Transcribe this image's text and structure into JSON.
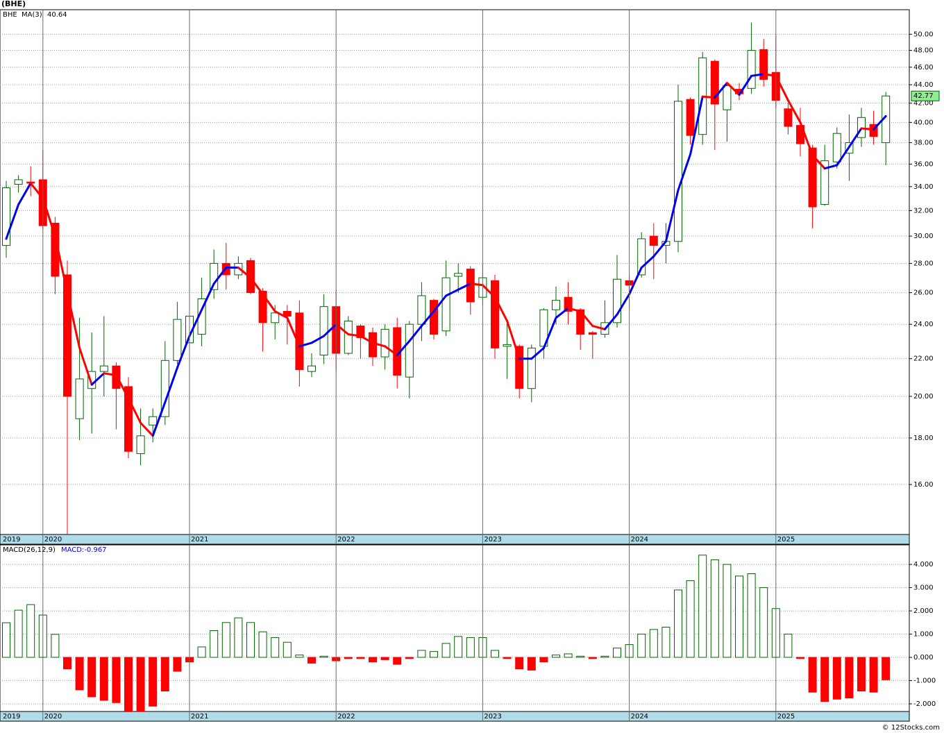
{
  "chart_data": [
    {
      "type": "candlestick",
      "title": "(BHE)",
      "symbol": "BHE",
      "log_scale": true,
      "grid": true,
      "up_color": "#006400",
      "down_color": "#ff0000",
      "categories": [
        "2019",
        null,
        null,
        "2020",
        null,
        null,
        null,
        null,
        null,
        null,
        null,
        null,
        null,
        null,
        null,
        "2021",
        null,
        null,
        null,
        null,
        null,
        null,
        null,
        null,
        null,
        null,
        null,
        "2022",
        null,
        null,
        null,
        null,
        null,
        null,
        null,
        null,
        null,
        null,
        null,
        "2023",
        null,
        null,
        null,
        null,
        null,
        null,
        null,
        null,
        null,
        null,
        null,
        "2024",
        null,
        null,
        null,
        null,
        null,
        null,
        null,
        null,
        null,
        null,
        null,
        "2025",
        null,
        null,
        null,
        null,
        null,
        null,
        null,
        null,
        null
      ],
      "open": [
        29.3,
        34.2,
        34.4,
        34.6,
        31.0,
        27.2,
        18.9,
        20.4,
        21.3,
        21.6,
        20.5,
        17.3,
        18.6,
        19.0,
        21.9,
        22.9,
        23.4,
        26.2,
        28.0,
        27.2,
        28.2,
        26.1,
        24.1,
        24.8,
        24.7,
        21.3,
        22.2,
        25.1,
        22.3,
        23.9,
        23.5,
        22.1,
        23.8,
        21.0,
        24.0,
        25.5,
        23.6,
        27.1,
        27.6,
        25.7,
        26.8,
        22.7,
        22.7,
        20.4,
        22.7,
        24.9,
        25.7,
        24.9,
        23.5,
        23.4,
        24.1,
        26.8,
        27.2,
        30.0,
        29.3,
        29.6,
        42.4,
        38.8,
        46.7,
        41.3,
        43.5,
        43.6,
        48.1,
        45.4,
        41.4,
        39.7,
        37.5,
        32.5,
        36.2,
        37.0,
        38.5,
        39.8,
        38.0
      ],
      "high": [
        34.5,
        35.0,
        35.8,
        37.3,
        31.5,
        28.2,
        24.4,
        23.5,
        24.5,
        21.8,
        21.0,
        19.4,
        19.4,
        23.0,
        25.4,
        26.6,
        27.0,
        29.0,
        29.5,
        28.5,
        28.4,
        26.3,
        25.2,
        25.2,
        25.5,
        22.3,
        25.9,
        26.2,
        24.5,
        24.0,
        23.8,
        24.0,
        24.4,
        24.2,
        26.7,
        25.6,
        28.2,
        28.0,
        27.8,
        28.0,
        27.2,
        24.2,
        22.8,
        22.8,
        25.0,
        26.4,
        26.7,
        25.0,
        23.6,
        25.5,
        28.6,
        27.2,
        30.3,
        31.0,
        31.0,
        44.0,
        42.6,
        47.8,
        46.9,
        44.3,
        44.2,
        51.5,
        49.4,
        49.8,
        42.0,
        41.5,
        37.8,
        37.8,
        39.5,
        40.8,
        41.5,
        41.2,
        43.2
      ],
      "low": [
        28.4,
        33.5,
        33.2,
        30.5,
        25.9,
        14.1,
        17.9,
        18.2,
        20.0,
        18.4,
        17.1,
        16.8,
        17.8,
        18.6,
        21.7,
        22.8,
        22.7,
        25.6,
        26.2,
        26.9,
        25.9,
        22.4,
        23.1,
        22.8,
        20.5,
        21.0,
        21.7,
        21.3,
        22.2,
        22.0,
        21.6,
        21.4,
        20.4,
        19.9,
        23.0,
        23.1,
        23.3,
        26.0,
        24.6,
        25.2,
        22.0,
        20.9,
        19.9,
        19.7,
        22.0,
        24.0,
        24.0,
        22.5,
        22.0,
        23.2,
        23.8,
        25.0,
        27.0,
        26.9,
        28.0,
        28.8,
        37.8,
        37.8,
        37.3,
        38.1,
        42.3,
        43.0,
        43.8,
        41.5,
        38.8,
        36.7,
        30.6,
        32.4,
        35.6,
        34.5,
        37.6,
        37.8,
        35.9
      ],
      "close": [
        33.9,
        34.6,
        34.3,
        30.8,
        27.1,
        20.0,
        20.9,
        21.3,
        21.6,
        20.4,
        17.4,
        18.1,
        19.0,
        21.9,
        24.3,
        24.5,
        25.6,
        28.0,
        27.2,
        28.0,
        26.0,
        24.1,
        24.7,
        24.5,
        21.4,
        21.6,
        25.1,
        22.3,
        24.2,
        23.2,
        22.1,
        23.7,
        21.1,
        24.0,
        25.8,
        23.4,
        27.0,
        27.3,
        25.4,
        27.0,
        22.6,
        22.8,
        20.4,
        22.6,
        24.9,
        25.5,
        24.8,
        23.4,
        23.4,
        24.1,
        26.9,
        26.5,
        29.8,
        29.3,
        29.6,
        42.2,
        38.7,
        47.1,
        41.9,
        43.9,
        43.0,
        48.0,
        44.6,
        42.3,
        39.6,
        37.9,
        32.3,
        36.3,
        38.9,
        38.0,
        40.5,
        38.6,
        42.77
      ],
      "series": [
        {
          "name": "MA(3)",
          "color": "#0000ee",
          "down_color": "#ff0000",
          "values": [
            29.8,
            32.5,
            34.3,
            33.0,
            30.0,
            26.0,
            22.6,
            20.6,
            21.2,
            21.1,
            19.9,
            18.7,
            18.1,
            19.7,
            21.5,
            23.3,
            24.9,
            26.6,
            27.7,
            27.7,
            27.0,
            25.9,
            24.8,
            24.4,
            22.7,
            22.9,
            23.3,
            24.0,
            23.4,
            23.3,
            22.9,
            22.7,
            22.2,
            23.0,
            23.9,
            24.8,
            25.8,
            26.2,
            26.6,
            26.5,
            25.7,
            24.2,
            22.0,
            22.0,
            22.6,
            24.4,
            25.0,
            24.8,
            23.9,
            23.7,
            24.6,
            25.9,
            27.7,
            28.5,
            29.6,
            33.7,
            36.9,
            42.7,
            42.6,
            44.2,
            42.9,
            45.0,
            45.2,
            45.0,
            42.3,
            40.0,
            36.8,
            35.6,
            35.9,
            37.6,
            39.4,
            39.3,
            40.64
          ]
        }
      ],
      "ylim": [
        14.1,
        53.2
      ],
      "yticks": [
        {
          "value": 16,
          "label": "16.00"
        },
        {
          "value": 18,
          "label": "18.00"
        },
        {
          "value": 20,
          "label": "20.00"
        },
        {
          "value": 22,
          "label": "22.00"
        },
        {
          "value": 24,
          "label": "24.00"
        },
        {
          "value": 26,
          "label": "26.00"
        },
        {
          "value": 28,
          "label": "28.00"
        },
        {
          "value": 30,
          "label": "30.00"
        },
        {
          "value": 32,
          "label": "32.00"
        },
        {
          "value": 34,
          "label": "34.00"
        },
        {
          "value": 36,
          "label": "36.00"
        },
        {
          "value": 38,
          "label": "38.00"
        },
        {
          "value": 40,
          "label": "40.00"
        },
        {
          "value": 42,
          "label": "42.00"
        },
        {
          "value": 44,
          "label": "44.00"
        },
        {
          "value": 46,
          "label": "46.00"
        },
        {
          "value": 48,
          "label": "48.00"
        },
        {
          "value": 50,
          "label": "50.00"
        }
      ]
    },
    {
      "type": "bar",
      "title": "MACD(26,12,9)",
      "legend_label": "MACD:",
      "grid": true,
      "up_color": "#006400",
      "down_color": "#ff0000",
      "values": [
        1.49,
        2.03,
        2.27,
        1.82,
        0.99,
        -0.5,
        -1.4,
        -1.7,
        -1.85,
        -1.95,
        -2.4,
        -2.4,
        -2.1,
        -1.45,
        -0.6,
        -0.2,
        0.45,
        1.15,
        1.5,
        1.7,
        1.5,
        1.1,
        0.85,
        0.65,
        0.1,
        -0.25,
        0.05,
        -0.15,
        -0.05,
        -0.05,
        -0.2,
        -0.1,
        -0.3,
        -0.05,
        0.3,
        0.25,
        0.6,
        0.9,
        0.85,
        0.85,
        0.3,
        -0.05,
        -0.5,
        -0.55,
        -0.2,
        0.1,
        0.15,
        0.05,
        -0.05,
        0.05,
        0.4,
        0.55,
        1.0,
        1.2,
        1.3,
        2.9,
        3.3,
        4.4,
        4.2,
        4.0,
        3.5,
        3.6,
        3.0,
        2.1,
        1.0,
        -0.05,
        -1.5,
        -1.9,
        -1.8,
        -1.75,
        -1.45,
        -1.5,
        -0.967
      ],
      "ylim": [
        -2.33,
        4.84
      ],
      "yticks": [
        {
          "value": -2,
          "label": "-2.000"
        },
        {
          "value": -1,
          "label": "-1.000"
        },
        {
          "value": 0,
          "label": "0.000"
        },
        {
          "value": 1,
          "label": "1.000"
        },
        {
          "value": 2,
          "label": "2.000"
        },
        {
          "value": 3,
          "label": "3.000"
        },
        {
          "value": 4,
          "label": "4.000"
        }
      ]
    }
  ],
  "footer": "© 12Stocks.com"
}
